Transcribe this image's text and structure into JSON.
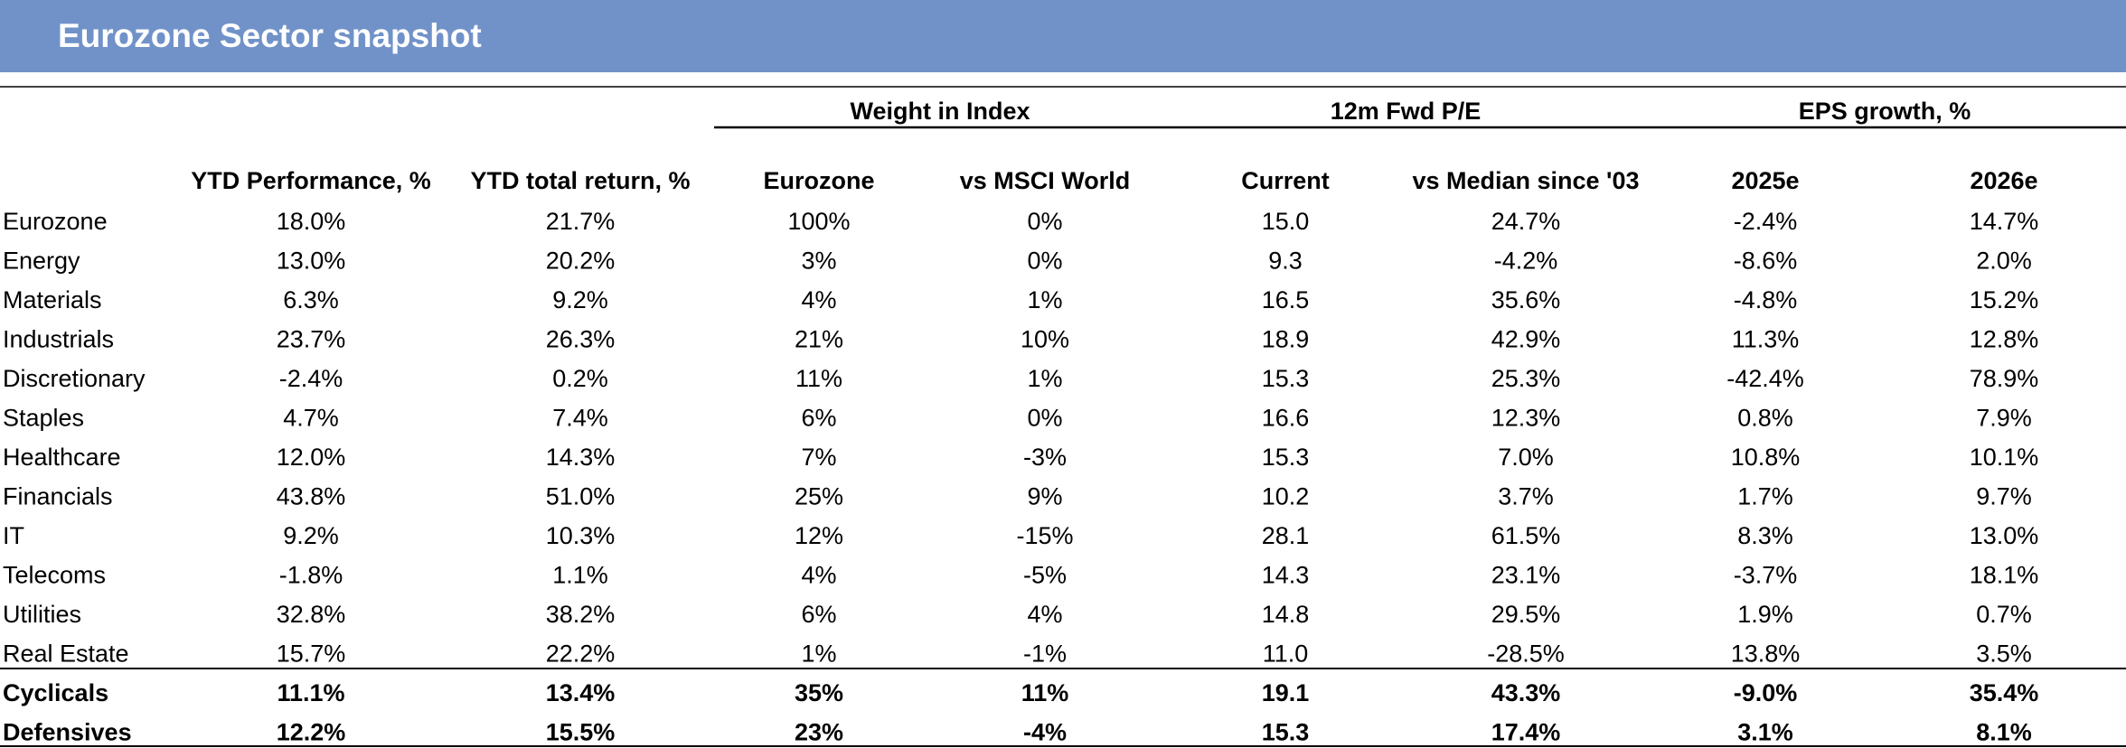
{
  "header": {
    "title": "Eurozone Sector snapshot"
  },
  "table": {
    "groups": [
      "Weight in Index",
      "12m Fwd P/E",
      "EPS growth, %"
    ],
    "columns": [
      "YTD Performance, %",
      "YTD total return, %",
      "Eurozone",
      "vs MSCI World",
      "Current",
      "vs Median since '03",
      "2025e",
      "2026e"
    ],
    "rows": [
      [
        "Eurozone",
        "18.0%",
        "21.7%",
        "100%",
        "0%",
        "15.0",
        "24.7%",
        "-2.4%",
        "14.7%"
      ],
      [
        "Energy",
        "13.0%",
        "20.2%",
        "3%",
        "0%",
        "9.3",
        "-4.2%",
        "-8.6%",
        "2.0%"
      ],
      [
        "Materials",
        "6.3%",
        "9.2%",
        "4%",
        "1%",
        "16.5",
        "35.6%",
        "-4.8%",
        "15.2%"
      ],
      [
        "Industrials",
        "23.7%",
        "26.3%",
        "21%",
        "10%",
        "18.9",
        "42.9%",
        "11.3%",
        "12.8%"
      ],
      [
        "Discretionary",
        "-2.4%",
        "0.2%",
        "11%",
        "1%",
        "15.3",
        "25.3%",
        "-42.4%",
        "78.9%"
      ],
      [
        "Staples",
        "4.7%",
        "7.4%",
        "6%",
        "0%",
        "16.6",
        "12.3%",
        "0.8%",
        "7.9%"
      ],
      [
        "Healthcare",
        "12.0%",
        "14.3%",
        "7%",
        "-3%",
        "15.3",
        "7.0%",
        "10.8%",
        "10.1%"
      ],
      [
        "Financials",
        "43.8%",
        "51.0%",
        "25%",
        "9%",
        "10.2",
        "3.7%",
        "1.7%",
        "9.7%"
      ],
      [
        "IT",
        "9.2%",
        "10.3%",
        "12%",
        "-15%",
        "28.1",
        "61.5%",
        "8.3%",
        "13.0%"
      ],
      [
        "Telecoms",
        "-1.8%",
        "1.1%",
        "4%",
        "-5%",
        "14.3",
        "23.1%",
        "-3.7%",
        "18.1%"
      ],
      [
        "Utilities",
        "32.8%",
        "38.2%",
        "6%",
        "4%",
        "14.8",
        "29.5%",
        "1.9%",
        "0.7%"
      ],
      [
        "Real Estate",
        "15.7%",
        "22.2%",
        "1%",
        "-1%",
        "11.0",
        "-28.5%",
        "13.8%",
        "3.5%"
      ]
    ],
    "summary_rows": [
      [
        "Cyclicals",
        "11.1%",
        "13.4%",
        "35%",
        "11%",
        "19.1",
        "43.3%",
        "-9.0%",
        "35.4%"
      ],
      [
        "Defensives",
        "12.2%",
        "15.5%",
        "23%",
        "-4%",
        "15.3",
        "17.4%",
        "3.1%",
        "8.1%"
      ]
    ]
  }
}
